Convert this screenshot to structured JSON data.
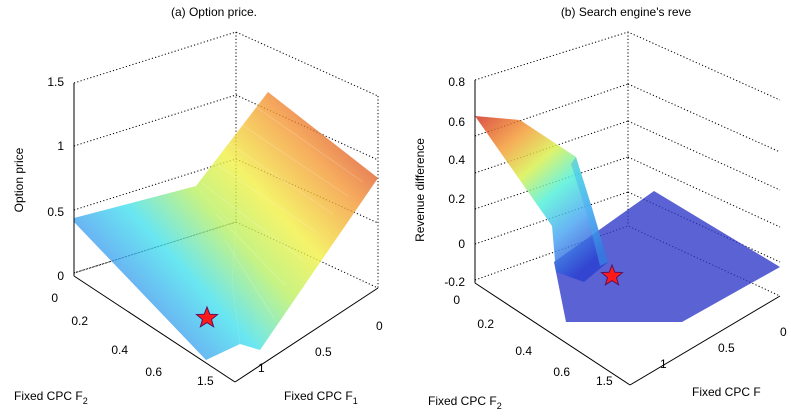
{
  "chart_data": [
    {
      "type": "surface",
      "title": "(a) Option price.",
      "zlabel": "Option price",
      "xlabel": "Fixed CPC F",
      "xlabel_sub": "1",
      "ylabel": "Fixed CPC F",
      "ylabel_sub": "2",
      "zticks": [
        "0",
        "0.5",
        "1",
        "1.5"
      ],
      "zlim": [
        0,
        1.5
      ],
      "f1_ticks": [
        "0",
        "0.5",
        "1",
        "1.5"
      ],
      "f2_ticks": [
        "0",
        "0.2",
        "0.4",
        "0.6"
      ],
      "colormap": "jet",
      "surface_corners": {
        "f2_0_f1_15": 0.4,
        "f2_0_f1_0": 1.5,
        "f2_06_f1_0": 0.9,
        "f2_06_f1_15": 0.0
      },
      "marker": {
        "shape": "star",
        "color": "#ff0000"
      }
    },
    {
      "type": "surface",
      "title": "(b) Search engine's reve",
      "zlabel": "Revenue difference",
      "xlabel": "Fixed CPC F",
      "xlabel_sub": "",
      "ylabel": "Fixed CPC F",
      "ylabel_sub": "2",
      "zticks": [
        "-0.2",
        "0",
        "0.2",
        "0.4",
        "0.6",
        "0.8"
      ],
      "zlim": [
        -0.2,
        0.8
      ],
      "f1_ticks": [
        "0",
        "0.5",
        "1",
        "1.5"
      ],
      "f2_ticks": [
        "0",
        "0.2",
        "0.4",
        "0.6"
      ],
      "colormap": "jet",
      "surface_peak": 0.62,
      "marker": {
        "shape": "star",
        "color": "#ff0000"
      }
    }
  ]
}
